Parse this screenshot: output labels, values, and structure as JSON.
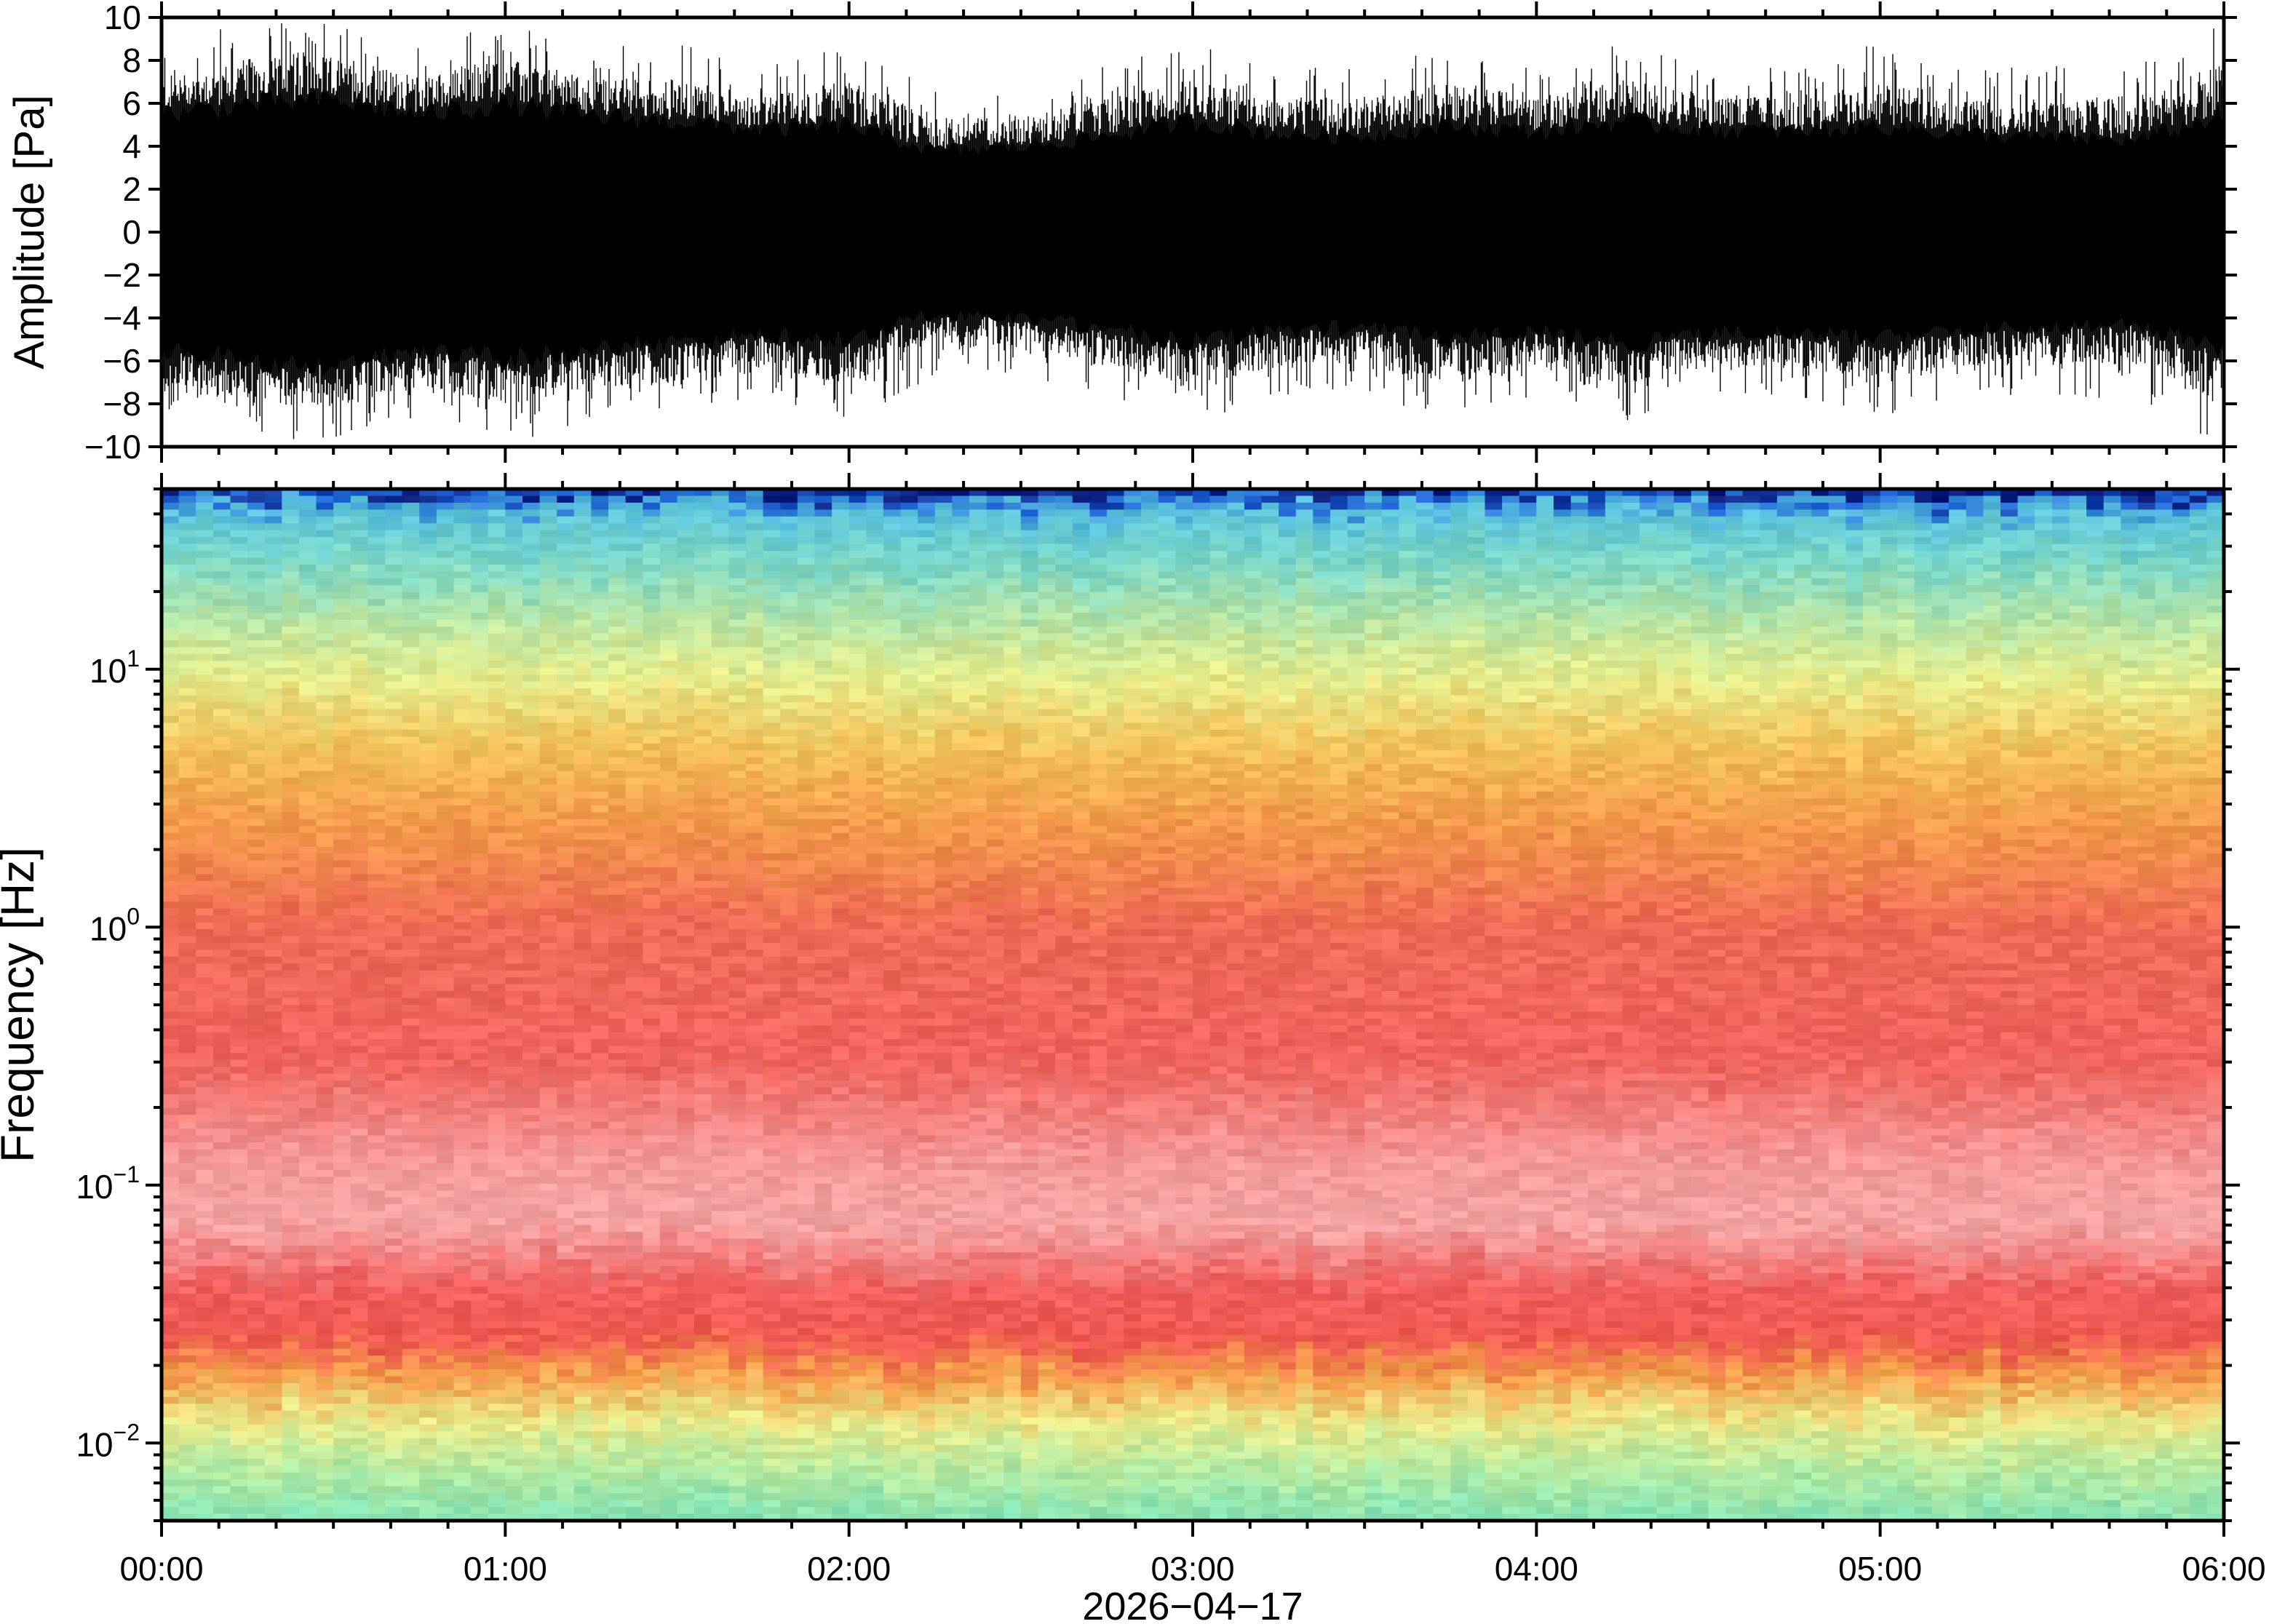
{
  "chart_data": [
    {
      "type": "line",
      "name_role": "waveform",
      "ylabel": "Amplitude [Pa]",
      "ylim": [
        -10,
        10
      ],
      "y_ticks": [
        {
          "value": -10,
          "label": "−10"
        },
        {
          "value": -8,
          "label": "−8"
        },
        {
          "value": -6,
          "label": "−6"
        },
        {
          "value": -4,
          "label": "−4"
        },
        {
          "value": -2,
          "label": "−2"
        },
        {
          "value": 0,
          "label": "0"
        },
        {
          "value": 2,
          "label": "2"
        },
        {
          "value": 4,
          "label": "4"
        },
        {
          "value": 6,
          "label": "6"
        },
        {
          "value": 8,
          "label": "8"
        },
        {
          "value": 10,
          "label": "10"
        }
      ],
      "xlim": [
        "2026-04-17 00:00",
        "2026-04-17 06:00"
      ],
      "envelope": {
        "x_hours": [
          0,
          0.25,
          0.5,
          0.75,
          1.0,
          1.25,
          1.5,
          1.75,
          2.0,
          2.25,
          2.5,
          2.75,
          3.0,
          3.25,
          3.5,
          3.75,
          4.0,
          4.25,
          4.5,
          4.75,
          5.0,
          5.25,
          5.5,
          5.75,
          6.0
        ],
        "upper_pa": [
          8,
          9,
          9,
          8,
          9,
          8,
          8,
          7,
          8,
          6,
          6,
          7,
          8,
          7,
          7,
          8,
          7,
          8,
          7,
          7,
          8,
          7,
          7,
          7,
          9
        ],
        "lower_pa": [
          -8,
          -9,
          -9,
          -8,
          -9,
          -8,
          -8,
          -7,
          -8,
          -6,
          -6,
          -7,
          -8,
          -7,
          -7,
          -8,
          -7,
          -8,
          -7,
          -7,
          -8,
          -7,
          -7,
          -7,
          -9
        ],
        "core_pa": [
          5.5,
          6,
          6.2,
          5.5,
          6,
          5.4,
          5.2,
          4.8,
          5,
          3.8,
          4,
          4.5,
          5.2,
          4.6,
          4.5,
          5,
          4.7,
          5.2,
          4.8,
          4.7,
          5,
          4.6,
          4.4,
          4.3,
          5.5
        ]
      }
    },
    {
      "type": "heatmap",
      "name_role": "spectrogram",
      "ylabel": "Frequency [Hz]",
      "xlabel": "2026−04−17",
      "y_scale": "log",
      "ylim_hz": [
        0.005,
        50
      ],
      "y_ticks": [
        {
          "value": 0.01,
          "base": "10",
          "exp": "−2"
        },
        {
          "value": 0.1,
          "base": "10",
          "exp": "−1"
        },
        {
          "value": 1,
          "base": "10",
          "exp": "0"
        },
        {
          "value": 10,
          "base": "10",
          "exp": "1"
        }
      ],
      "x_ticks": [
        {
          "hour": 0,
          "label": "00:00"
        },
        {
          "hour": 1,
          "label": "01:00"
        },
        {
          "hour": 2,
          "label": "02:00"
        },
        {
          "hour": 3,
          "label": "03:00"
        },
        {
          "hour": 4,
          "label": "04:00"
        },
        {
          "hour": 5,
          "label": "05:00"
        },
        {
          "hour": 6,
          "label": "06:00"
        }
      ],
      "colormap": "rainbow",
      "color_bands": [
        {
          "hz": 50,
          "color": "#0a1a7a"
        },
        {
          "hz": 46,
          "color": "#1f64d8"
        },
        {
          "hz": 40,
          "color": "#5bc4dc"
        },
        {
          "hz": 25,
          "color": "#7fd8c4"
        },
        {
          "hz": 14,
          "color": "#bfe6a0"
        },
        {
          "hz": 9,
          "color": "#e6ec8c"
        },
        {
          "hz": 5,
          "color": "#f2c25a"
        },
        {
          "hz": 2.5,
          "color": "#f39a4a"
        },
        {
          "hz": 1,
          "color": "#ef6a55"
        },
        {
          "hz": 0.3,
          "color": "#f0645e"
        },
        {
          "hz": 0.12,
          "color": "#f49a9a"
        },
        {
          "hz": 0.07,
          "color": "#f4a4a4"
        },
        {
          "hz": 0.04,
          "color": "#f06060"
        },
        {
          "hz": 0.025,
          "color": "#ef5a50"
        },
        {
          "hz": 0.018,
          "color": "#f5a04a"
        },
        {
          "hz": 0.012,
          "color": "#e9e98a"
        },
        {
          "hz": 0.008,
          "color": "#b6eaa0"
        },
        {
          "hz": 0.005,
          "color": "#86e3b4"
        }
      ]
    }
  ]
}
